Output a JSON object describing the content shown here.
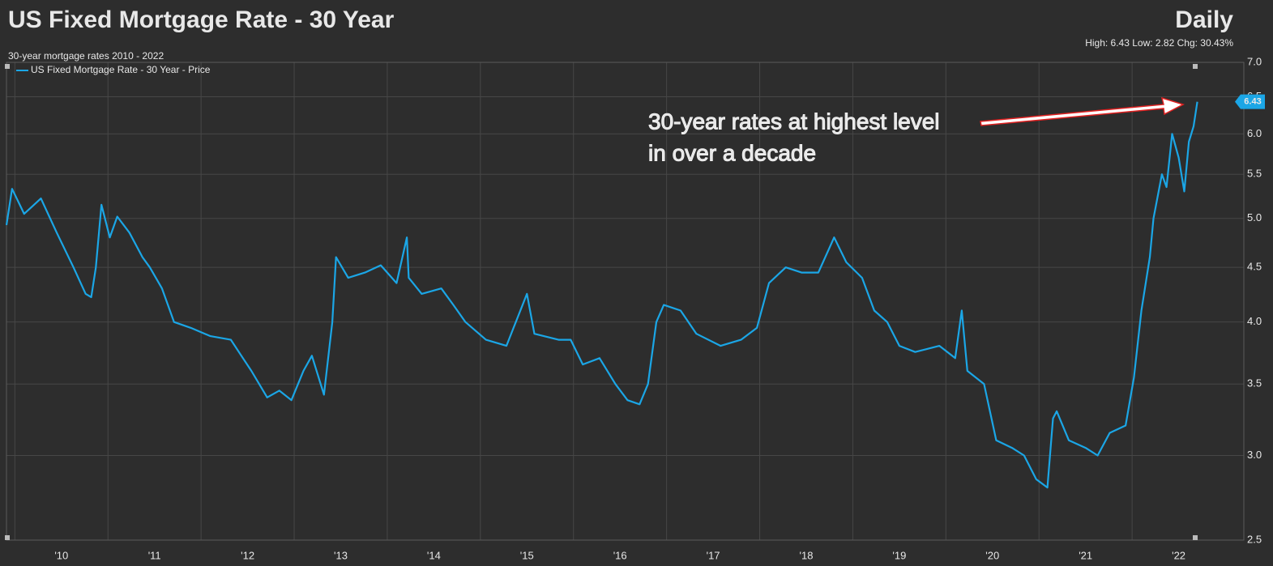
{
  "chart_data": {
    "type": "line",
    "title": "US Fixed Mortgage Rate - 30 Year",
    "frequency": "Daily",
    "stats": "High: 6.43 Low: 2.82 Chg: 30.43%",
    "subtitle": "30-year mortgage rates 2010 - 2022",
    "annotation": [
      "30-year rates at highest level",
      "in over a decade"
    ],
    "log_scale": true,
    "grid": true,
    "legend": "top-left",
    "xlim": [
      2009.91,
      2023.2
    ],
    "xticks": [
      {
        "value": 2010,
        "label": "'10"
      },
      {
        "value": 2011,
        "label": "'11"
      },
      {
        "value": 2012,
        "label": "'12"
      },
      {
        "value": 2013,
        "label": "'13"
      },
      {
        "value": 2014,
        "label": "'14"
      },
      {
        "value": 2015,
        "label": "'15"
      },
      {
        "value": 2016,
        "label": "'16"
      },
      {
        "value": 2017,
        "label": "'17"
      },
      {
        "value": 2018,
        "label": "'18"
      },
      {
        "value": 2019,
        "label": "'19"
      },
      {
        "value": 2020,
        "label": "'20"
      },
      {
        "value": 2021,
        "label": "'21"
      },
      {
        "value": 2022,
        "label": "'22"
      }
    ],
    "ylim": [
      2.5,
      7.0
    ],
    "yticks": [
      {
        "value": 2.5,
        "label": "2.5"
      },
      {
        "value": 3,
        "label": "3.0"
      },
      {
        "value": 3.5,
        "label": "3.5"
      },
      {
        "value": 4,
        "label": "4.0"
      },
      {
        "value": 4.5,
        "label": "4.5"
      },
      {
        "value": 5,
        "label": "5.0"
      },
      {
        "value": 5.5,
        "label": "5.5"
      },
      {
        "value": 6,
        "label": "6.0"
      },
      {
        "value": 6.5,
        "label": "6.5"
      },
      {
        "value": 7,
        "label": "7.0"
      }
    ],
    "x": [
      2009.91,
      2009.97,
      2010.1,
      2010.28,
      2010.45,
      2010.63,
      2010.76,
      2010.82,
      2010.87,
      2010.93,
      2011.02,
      2011.1,
      2011.23,
      2011.37,
      2011.45,
      2011.58,
      2011.71,
      2011.89,
      2012.1,
      2012.32,
      2012.45,
      2012.54,
      2012.71,
      2012.84,
      2012.97,
      2013.1,
      2013.19,
      2013.32,
      2013.41,
      2013.45,
      2013.58,
      2013.76,
      2013.93,
      2014.1,
      2014.21,
      2014.23,
      2014.37,
      2014.58,
      2014.71,
      2014.84,
      2015.06,
      2015.28,
      2015.5,
      2015.58,
      2015.84,
      2015.97,
      2016.1,
      2016.28,
      2016.45,
      2016.58,
      2016.71,
      2016.8,
      2016.89,
      2016.97,
      2017.15,
      2017.32,
      2017.58,
      2017.8,
      2017.97,
      2018.1,
      2018.28,
      2018.45,
      2018.63,
      2018.8,
      2018.93,
      2019.1,
      2019.23,
      2019.37,
      2019.5,
      2019.67,
      2019.93,
      2020.1,
      2020.17,
      2020.23,
      2020.41,
      2020.54,
      2020.71,
      2020.84,
      2020.97,
      2021.09,
      2021.15,
      2021.19,
      2021.32,
      2021.5,
      2021.63,
      2021.76,
      2021.93,
      2022.02,
      2022.1,
      2022.19,
      2022.23,
      2022.32,
      2022.37,
      2022.43,
      2022.5,
      2022.56,
      2022.61,
      2022.66,
      2022.7
    ],
    "series": [
      {
        "name": "US Fixed Mortgage Rate - 30 Year - Price",
        "color": "#1ba6e6",
        "values": [
          4.93,
          5.33,
          5.05,
          5.22,
          4.85,
          4.5,
          4.25,
          4.22,
          4.5,
          5.15,
          4.8,
          5.02,
          4.85,
          4.6,
          4.5,
          4.3,
          4.0,
          3.95,
          3.88,
          3.85,
          3.7,
          3.6,
          3.4,
          3.45,
          3.38,
          3.6,
          3.72,
          3.42,
          4.0,
          4.6,
          4.4,
          4.45,
          4.52,
          4.35,
          4.8,
          4.4,
          4.25,
          4.3,
          4.15,
          4.0,
          3.85,
          3.8,
          4.25,
          3.9,
          3.85,
          3.85,
          3.65,
          3.7,
          3.5,
          3.38,
          3.35,
          3.5,
          4.0,
          4.15,
          4.1,
          3.9,
          3.8,
          3.85,
          3.95,
          4.35,
          4.5,
          4.45,
          4.45,
          4.8,
          4.55,
          4.4,
          4.1,
          4.0,
          3.8,
          3.75,
          3.8,
          3.7,
          4.1,
          3.6,
          3.5,
          3.1,
          3.05,
          3.0,
          2.85,
          2.8,
          3.25,
          3.3,
          3.1,
          3.05,
          3.0,
          3.15,
          3.2,
          3.55,
          4.1,
          4.6,
          5.0,
          5.5,
          5.35,
          6.0,
          5.7,
          5.3,
          5.9,
          6.1,
          6.43
        ]
      }
    ]
  }
}
